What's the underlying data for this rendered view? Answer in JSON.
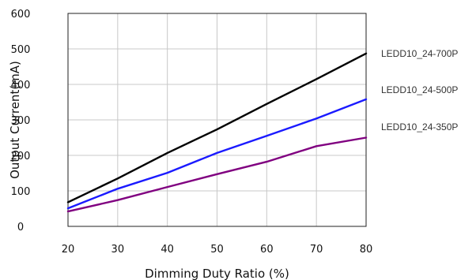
{
  "chart_data": {
    "type": "line",
    "title": "",
    "xlabel": "Dimming Duty Ratio (%)",
    "ylabel": "Output Current(mA)",
    "x": [
      20,
      30,
      40,
      50,
      60,
      70,
      80
    ],
    "xlim": [
      20,
      80
    ],
    "ylim": [
      0,
      600
    ],
    "xticks": [
      20,
      30,
      40,
      50,
      60,
      70,
      80
    ],
    "yticks": [
      0,
      100,
      200,
      300,
      400,
      500,
      600
    ],
    "grid": true,
    "legend_placement": "right",
    "series": [
      {
        "name": "LEDD10_24-700P",
        "color": "#000000",
        "values": [
          68,
          135,
          207,
          273,
          345,
          415,
          487
        ]
      },
      {
        "name": "LEDD10_24-500P",
        "color": "#1a1aff",
        "values": [
          51,
          106,
          151,
          207,
          255,
          304,
          358
        ]
      },
      {
        "name": "LEDD10_24-350P",
        "color": "#800080",
        "values": [
          42,
          74,
          111,
          147,
          182,
          226,
          250
        ]
      }
    ]
  }
}
